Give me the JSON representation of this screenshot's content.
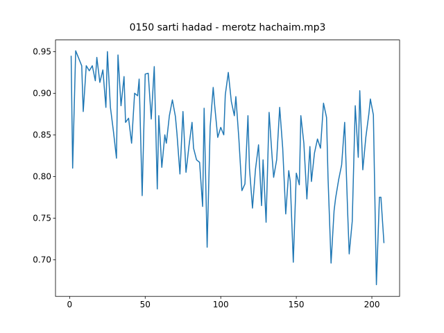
{
  "chart_data": {
    "type": "line",
    "title": "0150 sarti hadad - merotz hachaim.mp3",
    "x": [
      1,
      2,
      4,
      8,
      9,
      11,
      13,
      15,
      17,
      18,
      20,
      22,
      24,
      25,
      27,
      29,
      31,
      32,
      34,
      36,
      37,
      39,
      41,
      43,
      45,
      46,
      48,
      50,
      52,
      54,
      56,
      58,
      59,
      61,
      63,
      64,
      66,
      68,
      70,
      71,
      73,
      75,
      77,
      79,
      81,
      82,
      84,
      86,
      88,
      89,
      91,
      93,
      95,
      96,
      98,
      100,
      102,
      103,
      105,
      107,
      109,
      110,
      112,
      114,
      116,
      118,
      119,
      121,
      123,
      125,
      127,
      128,
      130,
      132,
      134,
      135,
      137,
      139,
      141,
      143,
      145,
      146,
      148,
      150,
      152,
      153,
      155,
      157,
      159,
      160,
      162,
      164,
      166,
      168,
      170,
      171,
      173,
      175,
      176,
      178,
      180,
      182,
      184,
      185,
      187,
      189,
      191,
      192,
      194,
      196,
      198,
      199,
      201,
      203,
      205,
      206,
      208
    ],
    "series": [
      {
        "color": "#1f77b4",
        "values": [
          0.945,
          0.81,
          0.951,
          0.933,
          0.878,
          0.933,
          0.927,
          0.933,
          0.915,
          0.943,
          0.913,
          0.928,
          0.883,
          0.95,
          0.883,
          0.854,
          0.822,
          0.946,
          0.885,
          0.92,
          0.865,
          0.87,
          0.84,
          0.9,
          0.897,
          0.917,
          0.777,
          0.923,
          0.924,
          0.869,
          0.932,
          0.785,
          0.873,
          0.811,
          0.85,
          0.84,
          0.873,
          0.892,
          0.872,
          0.852,
          0.803,
          0.878,
          0.805,
          0.837,
          0.865,
          0.834,
          0.82,
          0.817,
          0.764,
          0.882,
          0.715,
          0.86,
          0.907,
          0.885,
          0.847,
          0.859,
          0.85,
          0.898,
          0.925,
          0.89,
          0.873,
          0.896,
          0.845,
          0.783,
          0.791,
          0.873,
          0.81,
          0.762,
          0.809,
          0.838,
          0.765,
          0.82,
          0.745,
          0.877,
          0.823,
          0.799,
          0.82,
          0.883,
          0.834,
          0.755,
          0.807,
          0.794,
          0.697,
          0.804,
          0.79,
          0.873,
          0.84,
          0.773,
          0.836,
          0.794,
          0.828,
          0.845,
          0.834,
          0.888,
          0.871,
          0.798,
          0.696,
          0.759,
          0.774,
          0.796,
          0.814,
          0.865,
          0.756,
          0.707,
          0.746,
          0.885,
          0.823,
          0.903,
          0.808,
          0.847,
          0.875,
          0.893,
          0.874,
          0.67,
          0.775,
          0.775,
          0.72
        ]
      }
    ],
    "xlim": [
      -9.35,
      218.35
    ],
    "ylim": [
      0.656,
      0.964
    ],
    "xticks": [
      0,
      50,
      100,
      150,
      200
    ],
    "yticks": [
      {
        "value": 0.7,
        "label": "0.70"
      },
      0.75,
      {
        "value": 0.8,
        "label": "0.80"
      },
      0.85,
      {
        "value": 0.9,
        "label": "0.90"
      },
      0.95
    ]
  }
}
